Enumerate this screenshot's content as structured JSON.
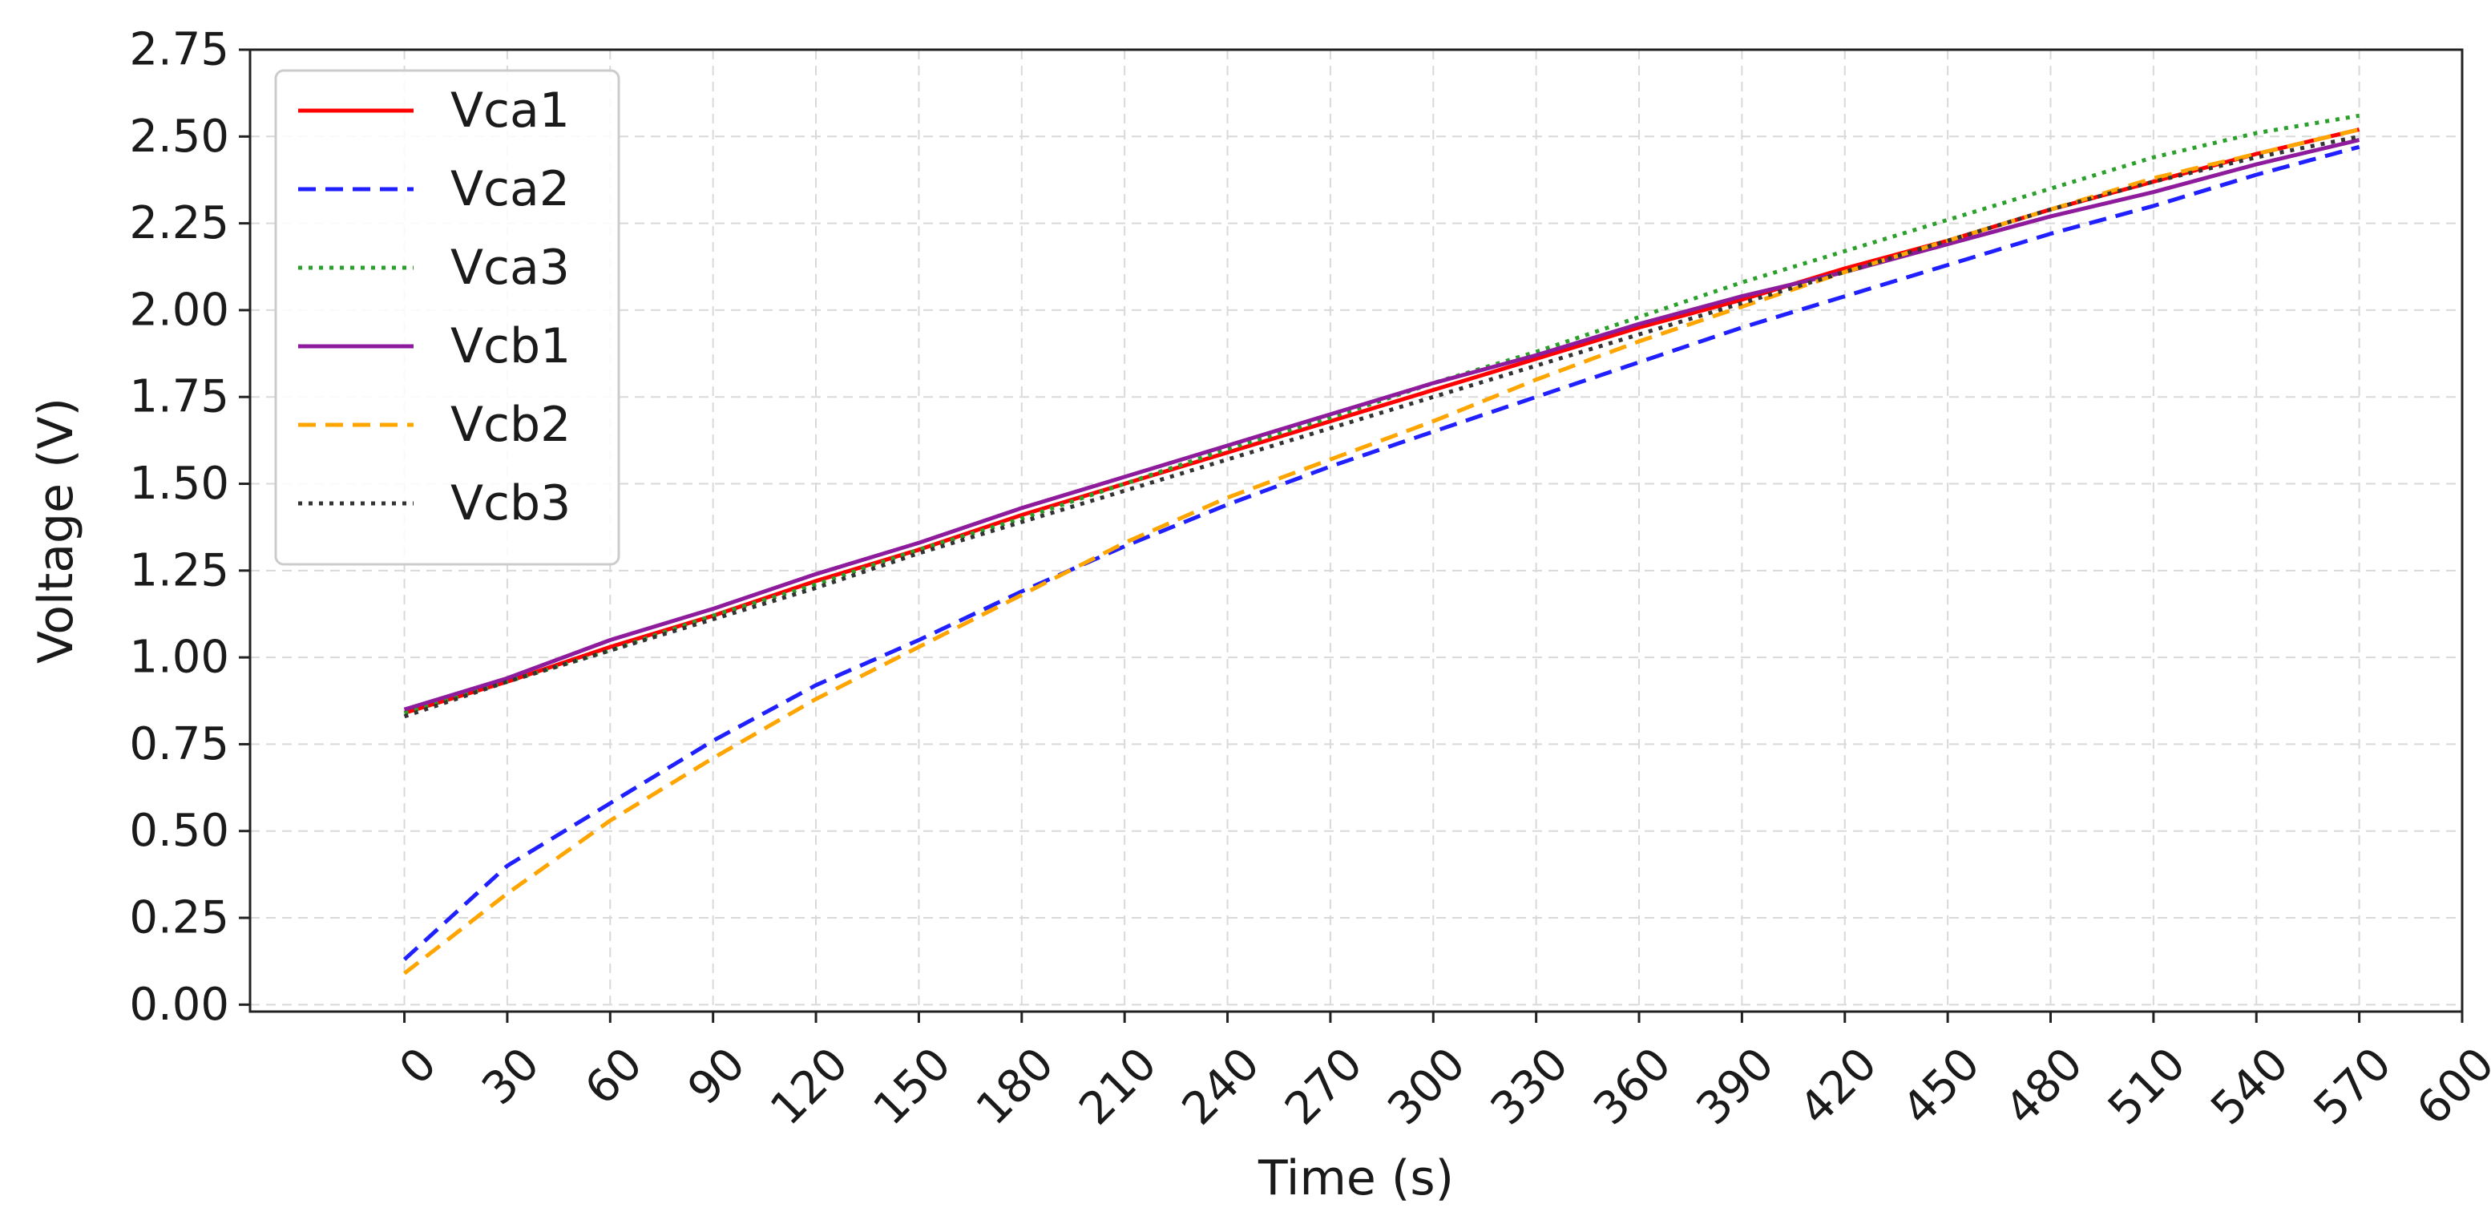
{
  "chart_data": {
    "type": "line",
    "title": "",
    "xlabel": "Time (s)",
    "ylabel": "Voltage (V)",
    "xlim": [
      -45,
      600
    ],
    "ylim": [
      -0.02,
      2.75
    ],
    "x_ticks": [
      0,
      30,
      60,
      90,
      120,
      150,
      180,
      210,
      240,
      270,
      300,
      330,
      360,
      390,
      420,
      450,
      480,
      510,
      540,
      570,
      600
    ],
    "y_ticks": [
      0.0,
      0.25,
      0.5,
      0.75,
      1.0,
      1.25,
      1.5,
      1.75,
      2.0,
      2.25,
      2.5,
      2.75
    ],
    "x_tick_labels": [
      "0",
      "30",
      "60",
      "90",
      "120",
      "150",
      "180",
      "210",
      "240",
      "270",
      "300",
      "330",
      "360",
      "390",
      "420",
      "450",
      "480",
      "510",
      "540",
      "570",
      "600"
    ],
    "y_tick_labels": [
      "0.00",
      "0.25",
      "0.50",
      "0.75",
      "1.00",
      "1.25",
      "1.50",
      "1.75",
      "2.00",
      "2.25",
      "2.50",
      "2.75"
    ],
    "grid": true,
    "legend": "top-left",
    "x": [
      0,
      30,
      60,
      90,
      120,
      150,
      180,
      210,
      240,
      270,
      300,
      330,
      360,
      390,
      420,
      450,
      480,
      510,
      540,
      570
    ],
    "series": [
      {
        "name": "Vca1",
        "color": "#ff0000",
        "dash": "solid",
        "values": [
          0.84,
          0.93,
          1.03,
          1.12,
          1.22,
          1.31,
          1.41,
          1.5,
          1.59,
          1.68,
          1.77,
          1.86,
          1.95,
          2.03,
          2.12,
          2.2,
          2.29,
          2.37,
          2.45,
          2.52
        ]
      },
      {
        "name": "Vca2",
        "color": "#1f1fff",
        "dash": "dashed",
        "values": [
          0.13,
          0.4,
          0.58,
          0.76,
          0.92,
          1.05,
          1.19,
          1.32,
          1.44,
          1.55,
          1.65,
          1.75,
          1.85,
          1.95,
          2.04,
          2.13,
          2.22,
          2.3,
          2.39,
          2.47
        ]
      },
      {
        "name": "Vca3",
        "color": "#2ca02c",
        "dash": "dotted",
        "values": [
          0.84,
          0.93,
          1.02,
          1.12,
          1.21,
          1.31,
          1.4,
          1.5,
          1.6,
          1.69,
          1.79,
          1.88,
          1.98,
          2.08,
          2.17,
          2.26,
          2.35,
          2.44,
          2.51,
          2.56
        ]
      },
      {
        "name": "Vcb1",
        "color": "#8e1b9c",
        "dash": "solid",
        "values": [
          0.85,
          0.94,
          1.05,
          1.14,
          1.24,
          1.33,
          1.43,
          1.52,
          1.61,
          1.7,
          1.79,
          1.87,
          1.96,
          2.04,
          2.11,
          2.19,
          2.27,
          2.34,
          2.42,
          2.49
        ]
      },
      {
        "name": "Vcb2",
        "color": "#ffa500",
        "dash": "dashed",
        "values": [
          0.09,
          0.32,
          0.53,
          0.71,
          0.88,
          1.03,
          1.18,
          1.33,
          1.46,
          1.57,
          1.68,
          1.8,
          1.91,
          2.01,
          2.11,
          2.2,
          2.29,
          2.38,
          2.45,
          2.52
        ]
      },
      {
        "name": "Vcb3",
        "color": "#333333",
        "dash": "dotted",
        "values": [
          0.83,
          0.93,
          1.02,
          1.11,
          1.2,
          1.3,
          1.39,
          1.48,
          1.57,
          1.66,
          1.75,
          1.84,
          1.93,
          2.02,
          2.11,
          2.2,
          2.29,
          2.37,
          2.44,
          2.5
        ]
      }
    ]
  }
}
